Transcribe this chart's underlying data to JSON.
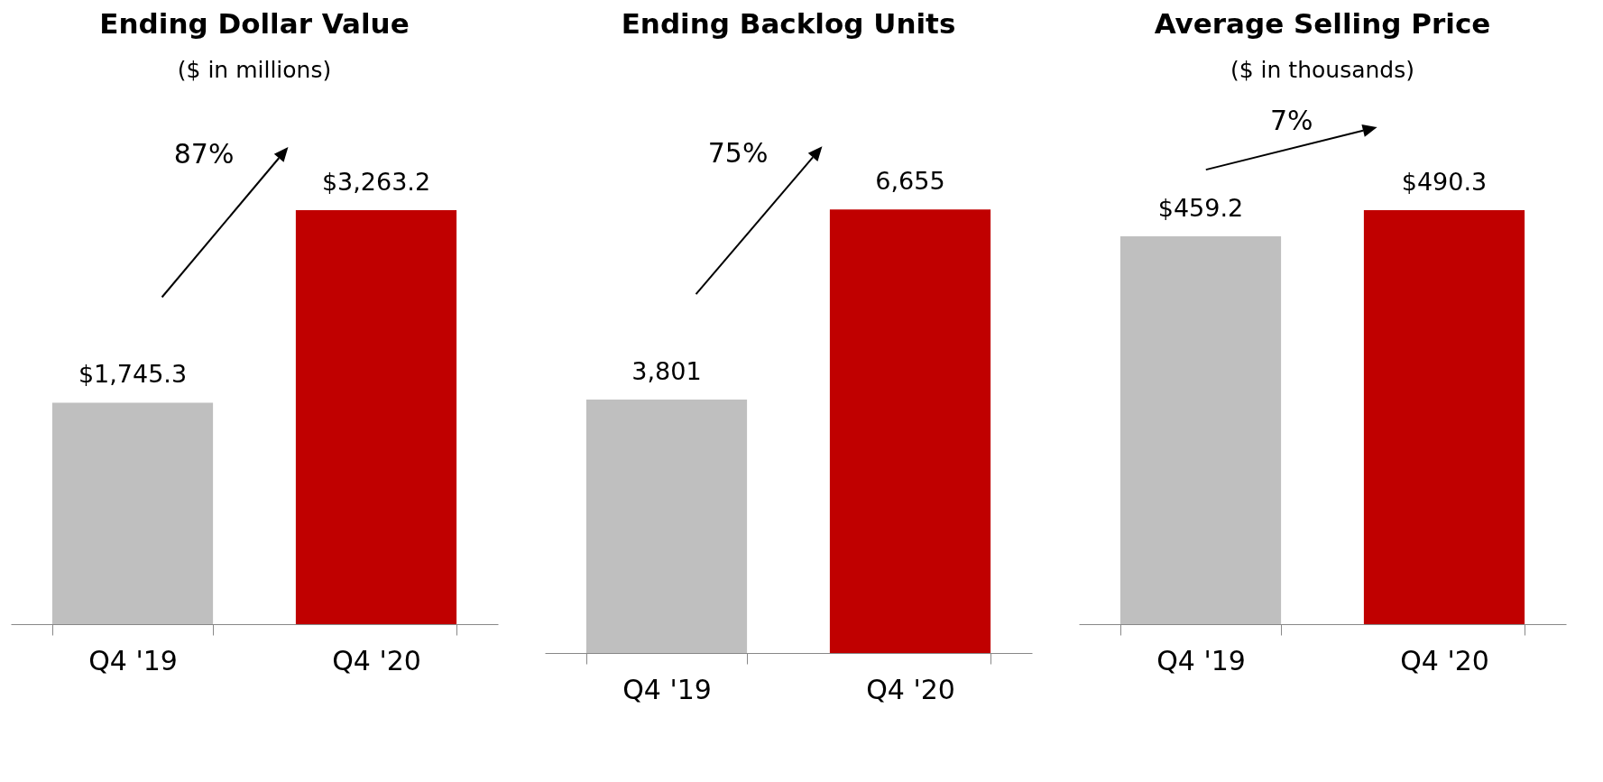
{
  "chart_data": [
    {
      "type": "bar",
      "title": "Ending Dollar Value",
      "subtitle": "($ in millions)",
      "categories": [
        "Q4 '19",
        "Q4 '20"
      ],
      "values": [
        1745.3,
        3263.2
      ],
      "colors": [
        "#bfbfbf",
        "#c00000"
      ],
      "value_labels": [
        "$1,745.3",
        "$3,263.2"
      ],
      "annotations": [
        "87%"
      ]
    },
    {
      "type": "bar",
      "title": "Ending Backlog Units",
      "categories": [
        "Q4 '19",
        "Q4 '20"
      ],
      "values": [
        3801,
        6655
      ],
      "colors": [
        "#bfbfbf",
        "#c00000"
      ],
      "value_labels": [
        "3,801",
        "6,655"
      ],
      "annotations": [
        "75%"
      ]
    },
    {
      "type": "bar",
      "title": "Average Selling Price",
      "subtitle": "($ in thousands)",
      "categories": [
        "Q4 '19",
        "Q4 '20"
      ],
      "values": [
        459.2,
        490.3
      ],
      "colors": [
        "#bfbfbf",
        "#c00000"
      ],
      "value_labels": [
        "$459.2",
        "$490.3"
      ],
      "annotations": [
        "7%"
      ]
    }
  ]
}
